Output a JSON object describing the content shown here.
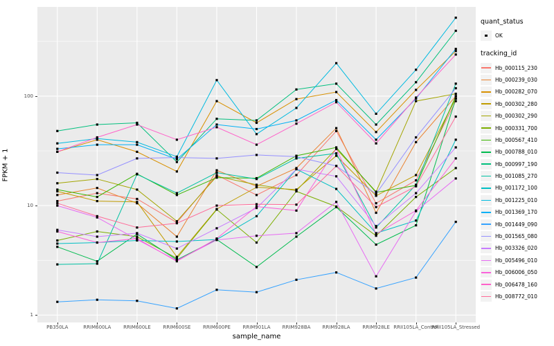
{
  "figure": {
    "y_axis_title": "FPKM + 1",
    "x_axis_title": "sample_name",
    "y_tick_labels": [
      "100",
      "10",
      "1"
    ],
    "colors": {
      "panel_bg": "#EBEBEB",
      "grid": "#FFFFFF",
      "tick_label": "#4D4D4D",
      "marker": "#000000",
      "legend_key_bg": "#F2F2F2"
    }
  },
  "legend": {
    "quant_status_title": "quant_status",
    "quant_status_items": [
      {
        "label": "OK",
        "marker": "black-square-point"
      }
    ],
    "tracking_id_title": "tracking_id"
  },
  "chart_data": {
    "type": "line",
    "x_type": "categorical",
    "y_scale": "log10",
    "title": "",
    "xlabel": "sample_name",
    "ylabel": "FPKM + 1",
    "y_ticks": [
      1,
      10,
      100
    ],
    "y_minor_gridlines": [
      3.162,
      31.623,
      316.23
    ],
    "ylim_approx": [
      1,
      650
    ],
    "grid": true,
    "legend_position": "right",
    "marker": "small-black-square",
    "categories": [
      "PB350LA",
      "RRIM600LA",
      "RRIM600LE",
      "RRIM600SE",
      "RRIM600PE",
      "RRIM901LA",
      "RRIM928BA",
      "RRIM928LA",
      "RRIM928LE",
      "RRII105LA_Control",
      "RRII105LA_Stressed"
    ],
    "series": [
      {
        "name": "Hb_000115_230",
        "color": "#F8766D",
        "values": [
          11,
          13,
          11.5,
          7,
          19,
          12.5,
          19,
          48,
          10.5,
          17,
          90
        ]
      },
      {
        "name": "Hb_000239_030",
        "color": "#EA8331",
        "values": [
          12.5,
          14.5,
          10.5,
          5.2,
          21,
          15,
          22,
          51,
          8.6,
          38,
          100
        ]
      },
      {
        "name": "Hb_000282_070",
        "color": "#D89000",
        "values": [
          31,
          40,
          31,
          20.5,
          90,
          57,
          94,
          109,
          47,
          114,
          258
        ]
      },
      {
        "name": "Hb_000302_280",
        "color": "#C09B00",
        "values": [
          13.5,
          11,
          10.8,
          3.4,
          9.3,
          14.7,
          14,
          28.5,
          12.3,
          19,
          95
        ]
      },
      {
        "name": "Hb_000302_290",
        "color": "#A3A500",
        "values": [
          16,
          17.5,
          14,
          7.2,
          18.5,
          15.5,
          13.7,
          33,
          13.4,
          90,
          105
        ]
      },
      {
        "name": "Hb_000331_700",
        "color": "#7CAE00",
        "values": [
          4.8,
          5.8,
          5.2,
          3.3,
          9.2,
          4.6,
          13.5,
          9.8,
          5.3,
          12,
          22
        ]
      },
      {
        "name": "Hb_000567_410",
        "color": "#39B600",
        "values": [
          14,
          12,
          19.5,
          12.5,
          18,
          17.8,
          28.5,
          34,
          13.2,
          15.3,
          100
        ]
      },
      {
        "name": "Hb_000788_010",
        "color": "#00BB4E",
        "values": [
          4.2,
          3.1,
          5.5,
          3.2,
          4.9,
          2.75,
          5.2,
          9.7,
          4.4,
          6.6,
          95
        ]
      },
      {
        "name": "Hb_000997_190",
        "color": "#00BF7D",
        "values": [
          48,
          55,
          57,
          25,
          62,
          60,
          115,
          130,
          55,
          134,
          395
        ]
      },
      {
        "name": "Hb_001085_270",
        "color": "#00C1A3",
        "values": [
          2.9,
          2.95,
          19.3,
          13,
          20,
          17.5,
          27,
          30,
          6.3,
          15.5,
          130
        ]
      },
      {
        "name": "Hb_001172_100",
        "color": "#00BFC4",
        "values": [
          4.5,
          4.6,
          4.8,
          4.7,
          4.9,
          8,
          21.5,
          14.2,
          5.6,
          7.3,
          40
        ]
      },
      {
        "name": "Hb_001225_010",
        "color": "#00BAE0",
        "values": [
          37,
          41,
          38,
          28,
          140,
          45,
          78,
          200,
          69,
          174,
          520
        ]
      },
      {
        "name": "Hb_001369_170",
        "color": "#00B0F6",
        "values": [
          33,
          36,
          36,
          26.5,
          55,
          50,
          60,
          92,
          40,
          95,
          270
        ]
      },
      {
        "name": "Hb_001449_090",
        "color": "#35A2FF",
        "values": [
          1.32,
          1.38,
          1.35,
          1.15,
          1.7,
          1.62,
          2.1,
          2.45,
          1.75,
          2.2,
          7.1
        ]
      },
      {
        "name": "Hb_001565_080",
        "color": "#9590FF",
        "values": [
          20,
          19,
          27,
          27.5,
          27,
          29,
          28,
          23,
          12.8,
          42,
          118
        ]
      },
      {
        "name": "Hb_003326_020",
        "color": "#C77CFF",
        "values": [
          6,
          5.2,
          5.6,
          4.05,
          6.2,
          9.5,
          21.5,
          18.5,
          6.5,
          13,
          34
        ]
      },
      {
        "name": "Hb_005496_010",
        "color": "#E76BF3",
        "values": [
          10,
          7.8,
          4.9,
          3.15,
          4.85,
          5.3,
          5.6,
          10.8,
          2.26,
          8.9,
          17.7
        ]
      },
      {
        "name": "Hb_006006_050",
        "color": "#FA62DB",
        "values": [
          5.8,
          4.6,
          5.0,
          3.1,
          5.0,
          9.8,
          9.0,
          33,
          5.5,
          9.0,
          27
        ]
      },
      {
        "name": "Hb_006478_160",
        "color": "#FF61C9",
        "values": [
          31,
          42,
          55,
          40,
          52,
          36,
          56,
          88,
          37,
          97,
          240
        ]
      },
      {
        "name": "Hb_008772_010",
        "color": "#FF6A98",
        "values": [
          10.5,
          8.0,
          6.3,
          6.9,
          10,
          10.3,
          10.2,
          23,
          9.7,
          15,
          65
        ]
      }
    ]
  }
}
